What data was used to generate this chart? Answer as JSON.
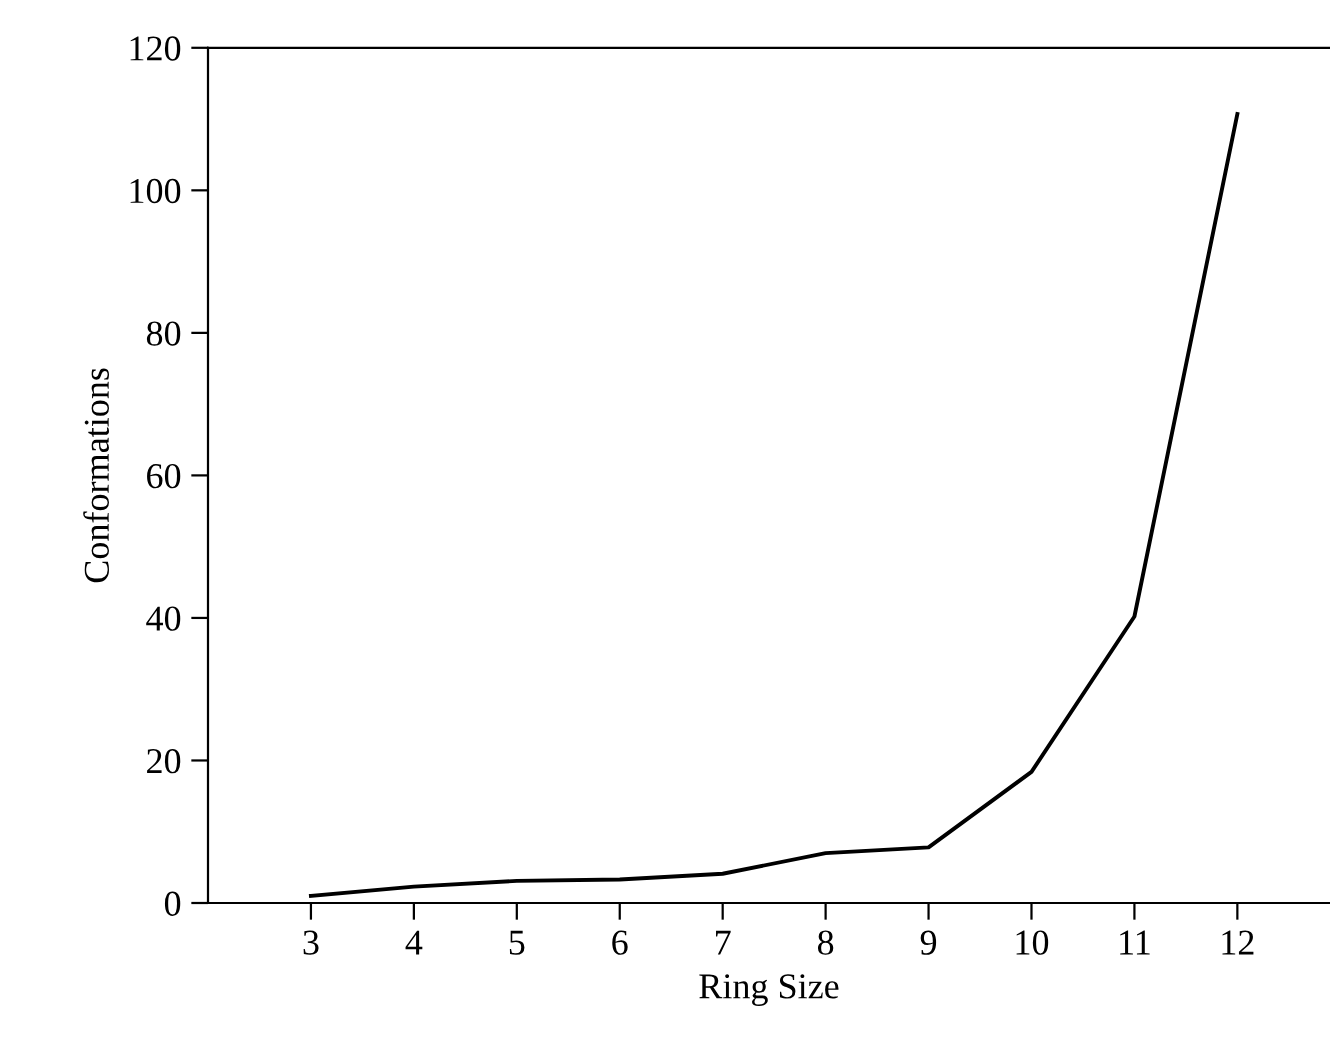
{
  "chart_data": {
    "type": "line",
    "xlabel": "Ring Size",
    "ylabel": "Conformations",
    "x": [
      3,
      4,
      5,
      6,
      7,
      8,
      9,
      10,
      11,
      12
    ],
    "series": [
      {
        "color": "#000000",
        "values": [
          1,
          2.3,
          3.1,
          3.3,
          4.1,
          7,
          7.8,
          18.4,
          40.2,
          110.7
        ]
      }
    ],
    "xlim": [
      2,
      12.9
    ],
    "xticks": [
      3,
      4,
      5,
      6,
      7,
      8,
      9,
      10,
      11,
      12
    ],
    "ylim": [
      0,
      120
    ],
    "yticks": [
      0,
      20,
      40,
      60,
      80,
      100,
      120
    ],
    "grid": false,
    "legend": false,
    "marker": "none",
    "line_style": "solid"
  }
}
